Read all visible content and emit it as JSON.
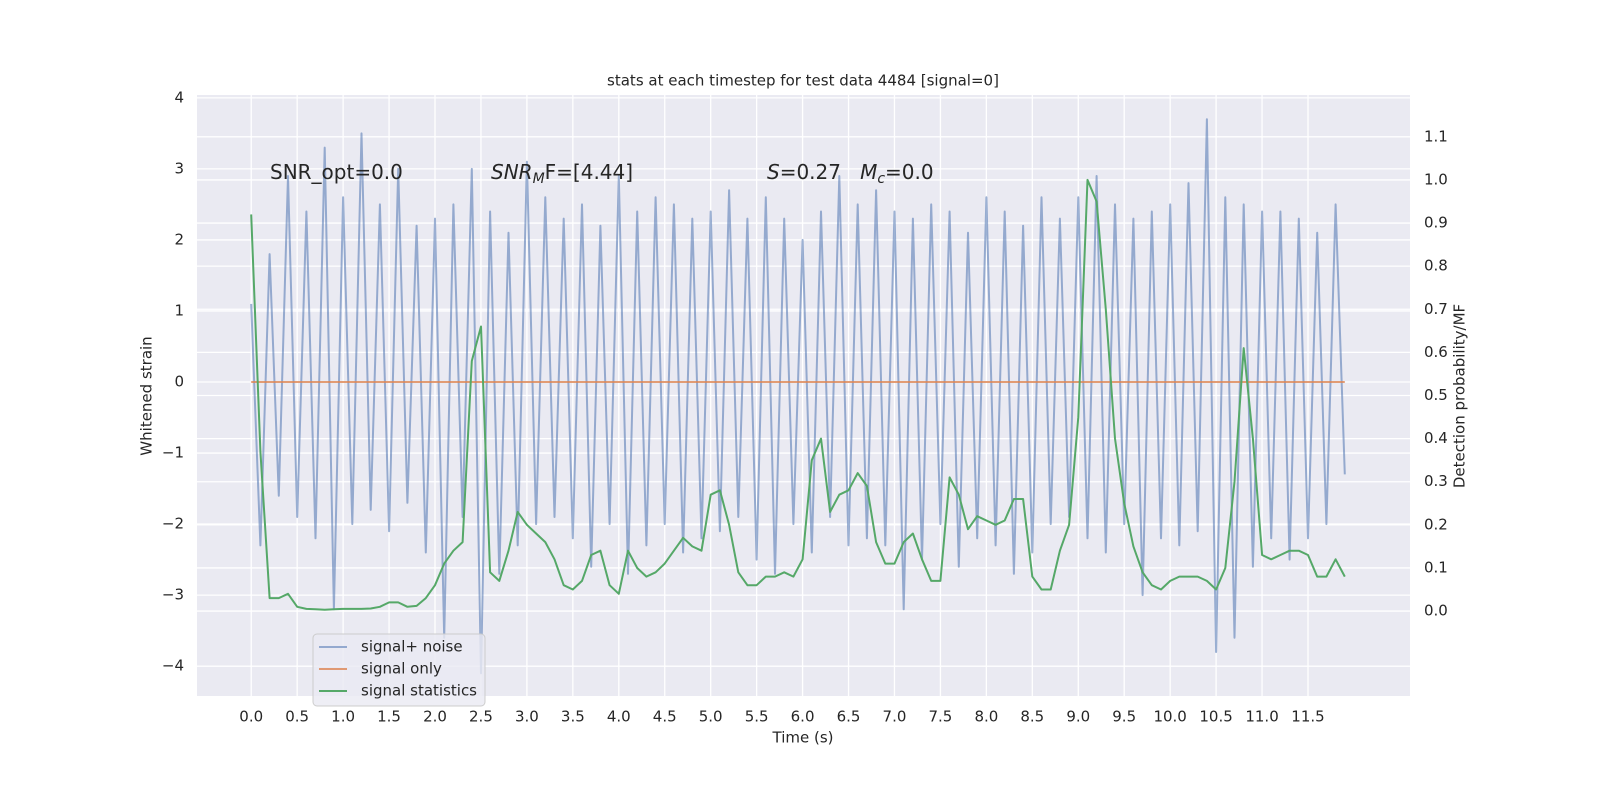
{
  "chart_data": {
    "type": "line",
    "title": "stats at each timestep for test data 4484 [signal=0]",
    "xlabel": "Time (s)",
    "ylabel": "Whitened strain",
    "y2label": "Detection probability/MF",
    "xlim": [
      -0.59,
      12.61
    ],
    "ylim": [
      -4.42,
      4.04
    ],
    "y2lim": [
      -0.197,
      1.197
    ],
    "grid": true,
    "legend": "lower left",
    "xticks": [
      {
        "value": 0,
        "label": "0.0"
      },
      {
        "value": 0.5,
        "label": "0.5"
      },
      {
        "value": 1,
        "label": "1.0"
      },
      {
        "value": 1.5,
        "label": "1.5"
      },
      {
        "value": 2,
        "label": "2.0"
      },
      {
        "value": 2.5,
        "label": "2.5"
      },
      {
        "value": 3,
        "label": "3.0"
      },
      {
        "value": 3.5,
        "label": "3.5"
      },
      {
        "value": 4,
        "label": "4.0"
      },
      {
        "value": 4.5,
        "label": "4.5"
      },
      {
        "value": 5,
        "label": "5.0"
      },
      {
        "value": 5.5,
        "label": "5.5"
      },
      {
        "value": 6,
        "label": "6.0"
      },
      {
        "value": 6.5,
        "label": "6.5"
      },
      {
        "value": 7,
        "label": "7.0"
      },
      {
        "value": 7.5,
        "label": "7.5"
      },
      {
        "value": 8,
        "label": "8.0"
      },
      {
        "value": 8.5,
        "label": "8.5"
      },
      {
        "value": 9,
        "label": "9.0"
      },
      {
        "value": 9.5,
        "label": "9.5"
      },
      {
        "value": 10,
        "label": "10.0"
      },
      {
        "value": 10.5,
        "label": "10.5"
      },
      {
        "value": 11,
        "label": "11.0"
      },
      {
        "value": 11.5,
        "label": "11.5"
      }
    ],
    "yticks": [
      {
        "value": -4,
        "label": "−4"
      },
      {
        "value": -3,
        "label": "−3"
      },
      {
        "value": -2,
        "label": "−2"
      },
      {
        "value": -1,
        "label": "−1"
      },
      0,
      1,
      2,
      3,
      4
    ],
    "y2ticks": [
      {
        "value": 0,
        "label": "0.0"
      },
      {
        "value": 0.1,
        "label": "0.1"
      },
      {
        "value": 0.2,
        "label": "0.2"
      },
      {
        "value": 0.3,
        "label": "0.3"
      },
      {
        "value": 0.4,
        "label": "0.4"
      },
      {
        "value": 0.5,
        "label": "0.5"
      },
      {
        "value": 0.6,
        "label": "0.6"
      },
      {
        "value": 0.7,
        "label": "0.7"
      },
      {
        "value": 0.8,
        "label": "0.8"
      },
      {
        "value": 0.9,
        "label": "0.9"
      },
      {
        "value": 1,
        "label": "1.0"
      },
      {
        "value": 1.1,
        "label": "1.1"
      }
    ],
    "annotations": [
      {
        "segments": [
          {
            "text": "SNR_opt=0.0"
          }
        ]
      },
      {
        "segments": [
          {
            "text": "SNR",
            "italic": true
          },
          {
            "text": "M",
            "italic": true,
            "sub": true
          },
          {
            "text": "F=[4.44]"
          }
        ]
      },
      {
        "segments": [
          {
            "text": "S",
            "italic": true
          },
          {
            "text": "=0.27   "
          },
          {
            "text": "M",
            "italic": true
          },
          {
            "text": "c",
            "italic": true,
            "sub": true
          },
          {
            "text": "=0.0"
          }
        ]
      }
    ],
    "x": [
      0,
      0.1,
      0.2,
      0.3,
      0.4,
      0.5,
      0.6,
      0.7,
      0.8,
      0.9,
      1,
      1.1,
      1.2,
      1.3,
      1.4,
      1.5,
      1.6,
      1.7,
      1.8,
      1.9,
      2,
      2.1,
      2.2,
      2.3,
      2.4,
      2.5,
      2.6,
      2.7,
      2.8,
      2.9,
      3,
      3.1,
      3.2,
      3.3,
      3.4,
      3.5,
      3.6,
      3.7,
      3.8,
      3.9,
      4,
      4.1,
      4.2,
      4.3,
      4.4,
      4.5,
      4.6,
      4.7,
      4.8,
      4.9,
      5,
      5.1,
      5.2,
      5.3,
      5.4,
      5.5,
      5.6,
      5.7,
      5.8,
      5.9,
      6,
      6.1,
      6.2,
      6.3,
      6.4,
      6.5,
      6.6,
      6.7,
      6.8,
      6.9,
      7,
      7.1,
      7.2,
      7.3,
      7.4,
      7.5,
      7.6,
      7.7,
      7.8,
      7.9,
      8,
      8.1,
      8.2,
      8.3,
      8.4,
      8.5,
      8.6,
      8.7,
      8.8,
      8.9,
      9,
      9.1,
      9.2,
      9.3,
      9.4,
      9.5,
      9.6,
      9.7,
      9.8,
      9.9,
      10,
      10.1,
      10.2,
      10.3,
      10.4,
      10.5,
      10.6,
      10.7,
      10.8,
      10.9,
      11,
      11.1,
      11.2,
      11.3,
      11.4,
      11.5,
      11.6,
      11.7,
      11.8,
      11.9
    ],
    "series": [
      {
        "name": "signal+ noise",
        "color": "#4c72b0",
        "opacity": 0.55,
        "values": [
          1.1,
          -2.3,
          1.8,
          -1.6,
          2.9,
          -1.9,
          2.4,
          -2.2,
          3.3,
          -3.2,
          2.6,
          -2.0,
          3.5,
          -1.8,
          2.5,
          -2.1,
          3.0,
          -1.7,
          2.2,
          -2.4,
          2.3,
          -3.6,
          2.5,
          -1.9,
          3.0,
          -4.1,
          2.4,
          -2.7,
          2.1,
          -2.3,
          3.1,
          -2.0,
          2.6,
          -1.9,
          2.3,
          -2.2,
          2.5,
          -2.6,
          2.2,
          -2.0,
          2.9,
          -2.7,
          2.4,
          -2.3,
          2.6,
          -2.0,
          2.5,
          -2.4,
          2.3,
          -2.2,
          2.4,
          -2.1,
          2.7,
          -1.9,
          2.3,
          -2.5,
          2.6,
          -2.7,
          2.3,
          -2.0,
          2.0,
          -2.4,
          2.4,
          -1.9,
          2.9,
          -2.3,
          2.5,
          -2.2,
          2.7,
          -2.3,
          2.4,
          -3.2,
          2.3,
          -2.5,
          2.5,
          -2.0,
          2.4,
          -2.6,
          2.1,
          -2.2,
          2.6,
          -2.3,
          2.4,
          -2.7,
          2.2,
          -2.4,
          2.6,
          -2.0,
          2.3,
          -1.9,
          2.6,
          -2.2,
          2.9,
          -2.4,
          2.5,
          -2.0,
          2.3,
          -3.0,
          2.4,
          -2.2,
          2.5,
          -2.3,
          2.8,
          -2.1,
          3.7,
          -3.8,
          2.6,
          -3.6,
          2.5,
          -2.6,
          2.4,
          -2.2,
          2.4,
          -2.5,
          2.3,
          -2.2,
          2.1,
          -2.0,
          2.5,
          -1.3
        ]
      },
      {
        "name": "signal only",
        "color": "#dd8452",
        "opacity": 0.8,
        "values": [
          0,
          0,
          0,
          0,
          0,
          0,
          0,
          0,
          0,
          0,
          0,
          0,
          0,
          0,
          0,
          0,
          0,
          0,
          0,
          0,
          0,
          0,
          0,
          0,
          0,
          0,
          0,
          0,
          0,
          0,
          0,
          0,
          0,
          0,
          0,
          0,
          0,
          0,
          0,
          0,
          0,
          0,
          0,
          0,
          0,
          0,
          0,
          0,
          0,
          0,
          0,
          0,
          0,
          0,
          0,
          0,
          0,
          0,
          0,
          0,
          0,
          0,
          0,
          0,
          0,
          0,
          0,
          0,
          0,
          0,
          0,
          0,
          0,
          0,
          0,
          0,
          0,
          0,
          0,
          0,
          0,
          0,
          0,
          0,
          0,
          0,
          0,
          0,
          0,
          0,
          0,
          0,
          0,
          0,
          0,
          0,
          0,
          0,
          0,
          0,
          0,
          0,
          0,
          0,
          0,
          0,
          0,
          0,
          0,
          0,
          0,
          0,
          0,
          0,
          0,
          0,
          0,
          0,
          0,
          0
        ]
      },
      {
        "name": "signal statistics",
        "color": "#55a868",
        "opacity": 1,
        "axis": "y2",
        "values": [
          0.92,
          0.37,
          0.03,
          0.03,
          0.04,
          0.01,
          0.005,
          0.004,
          0.003,
          0.004,
          0.005,
          0.005,
          0.005,
          0.006,
          0.01,
          0.02,
          0.02,
          0.01,
          0.012,
          0.03,
          0.06,
          0.11,
          0.14,
          0.16,
          0.58,
          0.66,
          0.09,
          0.07,
          0.14,
          0.23,
          0.2,
          0.18,
          0.16,
          0.12,
          0.06,
          0.05,
          0.07,
          0.13,
          0.14,
          0.06,
          0.04,
          0.14,
          0.1,
          0.08,
          0.09,
          0.11,
          0.14,
          0.17,
          0.15,
          0.14,
          0.27,
          0.28,
          0.2,
          0.09,
          0.06,
          0.06,
          0.08,
          0.08,
          0.09,
          0.08,
          0.12,
          0.35,
          0.4,
          0.23,
          0.27,
          0.28,
          0.32,
          0.29,
          0.16,
          0.11,
          0.11,
          0.16,
          0.18,
          0.12,
          0.07,
          0.07,
          0.31,
          0.27,
          0.19,
          0.22,
          0.21,
          0.2,
          0.21,
          0.26,
          0.26,
          0.08,
          0.05,
          0.05,
          0.14,
          0.2,
          0.45,
          1.0,
          0.95,
          0.7,
          0.4,
          0.25,
          0.15,
          0.09,
          0.06,
          0.05,
          0.07,
          0.08,
          0.08,
          0.08,
          0.07,
          0.05,
          0.1,
          0.3,
          0.61,
          0.4,
          0.13,
          0.12,
          0.13,
          0.14,
          0.14,
          0.13,
          0.08,
          0.08,
          0.12,
          0.08
        ]
      }
    ]
  }
}
